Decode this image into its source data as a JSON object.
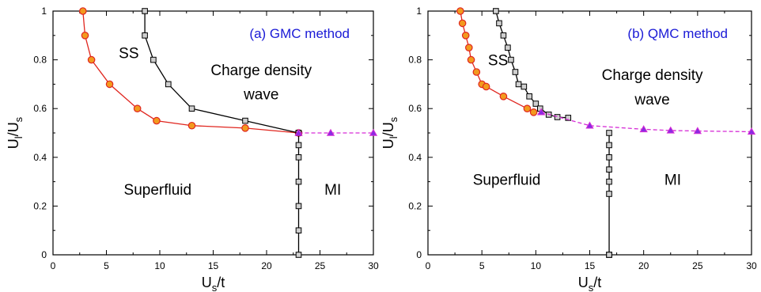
{
  "chart_data": [
    {
      "type": "line",
      "title": "(a) GMC method",
      "xlabel": {
        "main": "U",
        "sub": "s",
        "tail": "/t"
      },
      "ylabel": {
        "main": "U",
        "sub1": "l",
        "mid": "/U",
        "sub2": "s"
      },
      "xlim": [
        0,
        30
      ],
      "ylim": [
        0,
        1
      ],
      "xticks": [
        0,
        5,
        10,
        15,
        20,
        25,
        30
      ],
      "yticks": [
        0,
        0.2,
        0.4,
        0.6,
        0.8,
        1
      ],
      "annotations": [
        {
          "text": "SS",
          "x": 7.1,
          "y": 0.83
        },
        {
          "text": "Charge density",
          "x": 19.5,
          "y": 0.76
        },
        {
          "text": "wave",
          "x": 19.5,
          "y": 0.66
        },
        {
          "text": "Superfluid",
          "x": 9.8,
          "y": 0.27
        },
        {
          "text": "MI",
          "x": 26.2,
          "y": 0.27
        }
      ],
      "series": [
        {
          "style": "circle",
          "color": "#e0261f",
          "fill": "#f29a1e",
          "x": [
            2.8,
            3.0,
            3.6,
            5.3,
            7.9,
            9.7,
            13.0,
            18.0,
            23.0
          ],
          "y": [
            1.0,
            0.9,
            0.8,
            0.7,
            0.6,
            0.55,
            0.53,
            0.52,
            0.5
          ]
        },
        {
          "style": "square",
          "color": "#000000",
          "fill": "#cfcfcf",
          "x": [
            8.6,
            8.6,
            9.4,
            10.8,
            13.0,
            18.0,
            23.0
          ],
          "y": [
            1.0,
            0.9,
            0.8,
            0.7,
            0.6,
            0.55,
            0.5
          ]
        },
        {
          "style": "square",
          "color": "#000000",
          "fill": "#cfcfcf",
          "x": [
            23.0,
            23.0,
            23.0,
            23.0,
            23.0,
            23.0,
            23.0
          ],
          "y": [
            0.5,
            0.4,
            0.3,
            0.2,
            0.1,
            0.0,
            0.45
          ]
        },
        {
          "style": "triangle",
          "color": "#d62cd6",
          "fill": "#8a2be2",
          "dashed": true,
          "x": [
            23.0,
            26.0,
            30.0
          ],
          "y": [
            0.5,
            0.5,
            0.5
          ]
        }
      ]
    },
    {
      "type": "line",
      "title": "(b) QMC method",
      "xlabel": {
        "main": "U",
        "sub": "s",
        "tail": "/t"
      },
      "ylabel": {
        "main": "U",
        "sub1": "l",
        "mid": "/U",
        "sub2": "s"
      },
      "xlim": [
        0,
        30
      ],
      "ylim": [
        0,
        1
      ],
      "xticks": [
        0,
        5,
        10,
        15,
        20,
        25,
        30
      ],
      "yticks": [
        0,
        0.2,
        0.4,
        0.6,
        0.8,
        1
      ],
      "annotations": [
        {
          "text": "SS",
          "x": 6.5,
          "y": 0.8
        },
        {
          "text": "Charge density",
          "x": 20.8,
          "y": 0.74
        },
        {
          "text": "wave",
          "x": 20.8,
          "y": 0.64
        },
        {
          "text": "Superfluid",
          "x": 7.3,
          "y": 0.31
        },
        {
          "text": "MI",
          "x": 22.7,
          "y": 0.31
        }
      ],
      "series": [
        {
          "style": "circle",
          "color": "#e0261f",
          "fill": "#f29a1e",
          "x": [
            3.0,
            3.2,
            3.5,
            3.8,
            4.0,
            4.5,
            5.0,
            5.4,
            7.0,
            9.2,
            9.8
          ],
          "y": [
            1.0,
            0.95,
            0.9,
            0.85,
            0.8,
            0.75,
            0.7,
            0.69,
            0.65,
            0.6,
            0.585
          ]
        },
        {
          "style": "square",
          "color": "#000000",
          "fill": "#cfcfcf",
          "x": [
            6.3,
            6.6,
            7.0,
            7.4,
            7.7,
            8.1,
            8.4,
            8.9,
            9.4,
            10.0,
            10.4,
            11.2,
            12.0,
            13.0
          ],
          "y": [
            1.0,
            0.95,
            0.9,
            0.85,
            0.8,
            0.75,
            0.7,
            0.69,
            0.65,
            0.62,
            0.6,
            0.575,
            0.565,
            0.562
          ]
        },
        {
          "style": "square",
          "color": "#000000",
          "fill": "#cfcfcf",
          "x": [
            16.8,
            16.8,
            16.8,
            16.8,
            16.8,
            16.8,
            16.8,
            16.8
          ],
          "y": [
            0.5,
            0.45,
            0.4,
            0.35,
            0.3,
            0.25,
            0.0,
            0.0
          ]
        },
        {
          "style": "triangle",
          "color": "#d62cd6",
          "fill": "#8a2be2",
          "dashed": true,
          "x": [
            10.5,
            15.0,
            20.0,
            22.5,
            25.0,
            30.0
          ],
          "y": [
            0.585,
            0.53,
            0.515,
            0.51,
            0.508,
            0.505
          ]
        }
      ]
    }
  ]
}
